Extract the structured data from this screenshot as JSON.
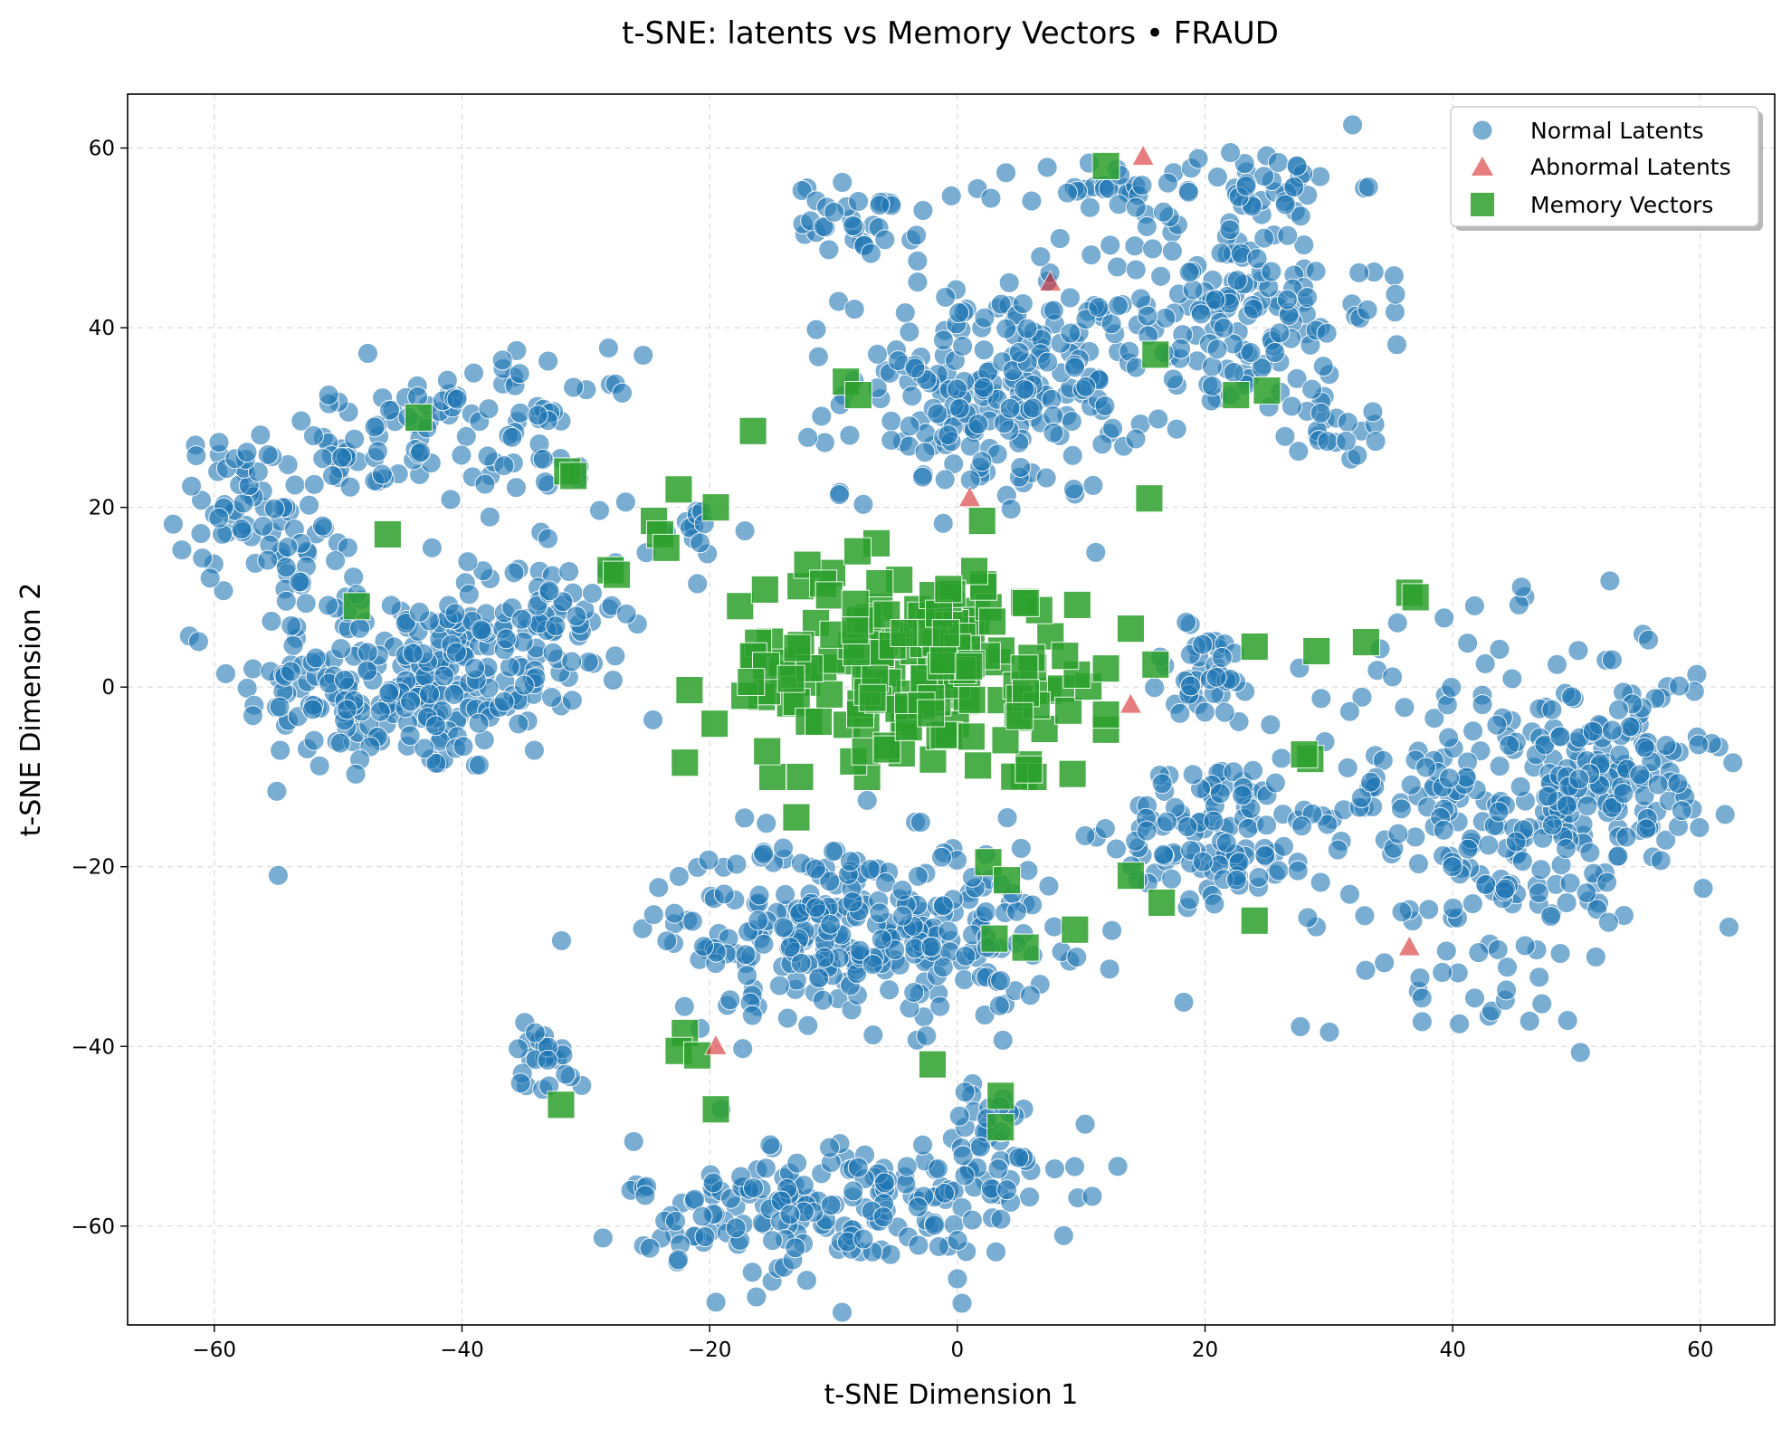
{
  "chart_data": {
    "type": "scatter",
    "title": "t-SNE: latents vs Memory Vectors • FRAUD",
    "xlabel": "t-SNE Dimension 1",
    "ylabel": "t-SNE Dimension 2",
    "xlim": [
      -67,
      66
    ],
    "ylim": [
      -71,
      66
    ],
    "xticks": [
      -60,
      -40,
      -20,
      0,
      20,
      40,
      60
    ],
    "yticks": [
      -60,
      -40,
      -20,
      0,
      20,
      40,
      60
    ],
    "tick_labels": {
      "x": [
        "−60",
        "−40",
        "−20",
        "0",
        "20",
        "40",
        "60"
      ],
      "y": [
        "−60",
        "−40",
        "−20",
        "0",
        "20",
        "40",
        "60"
      ]
    },
    "grid": true,
    "legend_position": "top-right",
    "colors": {
      "normal": "#1f77b4",
      "abnormal": "#d62728",
      "memory": "#2ca02c"
    },
    "series": [
      {
        "name": "Normal Latents",
        "marker": "circle",
        "clusters": [
          {
            "cx": -44,
            "cy": 0,
            "sx": 7,
            "sy": 5,
            "n": 240
          },
          {
            "cx": -33,
            "cy": 8,
            "sx": 3,
            "sy": 5,
            "n": 60
          },
          {
            "cx": -57,
            "cy": 20,
            "sx": 3,
            "sy": 4,
            "n": 60
          },
          {
            "cx": -47,
            "cy": 27,
            "sx": 5,
            "sy": 4,
            "n": 70
          },
          {
            "cx": -34,
            "cy": 29,
            "sx": 4,
            "sy": 4,
            "n": 50
          },
          {
            "cx": -51,
            "cy": 10,
            "sx": 3,
            "sy": 4,
            "n": 25
          },
          {
            "cx": -21,
            "cy": 17,
            "sx": 2,
            "sy": 2,
            "n": 15
          },
          {
            "cx": -8,
            "cy": 52,
            "sx": 2.5,
            "sy": 2,
            "n": 35
          },
          {
            "cx": 3,
            "cy": 33,
            "sx": 6,
            "sy": 6,
            "n": 220
          },
          {
            "cx": 22,
            "cy": 42,
            "sx": 6,
            "sy": 6,
            "n": 160
          },
          {
            "cx": 24,
            "cy": 56,
            "sx": 4,
            "sy": 2,
            "n": 40
          },
          {
            "cx": 11,
            "cy": 55,
            "sx": 3,
            "sy": 2,
            "n": 25
          },
          {
            "cx": 31,
            "cy": 29,
            "sx": 2,
            "sy": 2,
            "n": 20
          },
          {
            "cx": 20,
            "cy": 1,
            "sx": 2.5,
            "sy": 3,
            "n": 40
          },
          {
            "cx": 21,
            "cy": -16,
            "sx": 4,
            "sy": 4,
            "n": 110
          },
          {
            "cx": 44,
            "cy": -14,
            "sx": 8,
            "sy": 10,
            "n": 290
          },
          {
            "cx": 54,
            "cy": -8,
            "sx": 3,
            "sy": 5,
            "n": 80
          },
          {
            "cx": -8,
            "cy": -27,
            "sx": 8,
            "sy": 5,
            "n": 300
          },
          {
            "cx": -10,
            "cy": -58,
            "sx": 8,
            "sy": 4,
            "n": 190
          },
          {
            "cx": -33,
            "cy": -41,
            "sx": 1.5,
            "sy": 2,
            "n": 25
          },
          {
            "cx": 2,
            "cy": -51,
            "sx": 3,
            "sy": 4,
            "n": 40
          }
        ]
      },
      {
        "name": "Abnormal Latents",
        "marker": "triangle",
        "points": [
          [
            15,
            59
          ],
          [
            7.5,
            45
          ],
          [
            1,
            21
          ],
          [
            14,
            -2
          ],
          [
            36.5,
            -29
          ],
          [
            -19.5,
            -40
          ]
        ]
      },
      {
        "name": "Memory Vectors",
        "marker": "square",
        "points": [
          [
            12,
            58
          ],
          [
            16,
            37
          ],
          [
            15.5,
            21
          ],
          [
            -9,
            34
          ],
          [
            -8,
            32.5
          ],
          [
            22.5,
            32.5
          ],
          [
            25,
            33
          ],
          [
            -16.5,
            28.5
          ],
          [
            -43.5,
            30
          ],
          [
            -31.5,
            24
          ],
          [
            -31,
            23.5
          ],
          [
            -46,
            17
          ],
          [
            -48.5,
            9
          ],
          [
            -28,
            13
          ],
          [
            -27.5,
            12.5
          ],
          [
            -22.5,
            22
          ],
          [
            -19.5,
            20
          ],
          [
            -24.5,
            18.5
          ],
          [
            -24,
            17
          ],
          [
            -23.5,
            15.5
          ],
          [
            2,
            18.5
          ],
          [
            14,
            6.5
          ],
          [
            16,
            2.5
          ],
          [
            24,
            4.5
          ],
          [
            29,
            4
          ],
          [
            33,
            5
          ],
          [
            36.5,
            10.5
          ],
          [
            37,
            10
          ],
          [
            28.5,
            -8
          ],
          [
            28,
            -7.5
          ],
          [
            14,
            -21
          ],
          [
            16.5,
            -24
          ],
          [
            24,
            -26
          ],
          [
            5.5,
            -29
          ],
          [
            9.5,
            -27
          ],
          [
            3,
            -28
          ],
          [
            2.5,
            -19.5
          ],
          [
            4,
            -21.5
          ],
          [
            -13,
            -14.5
          ],
          [
            -22,
            -38.5
          ],
          [
            -22.5,
            -40.5
          ],
          [
            -21,
            -41
          ],
          [
            -19.5,
            -47
          ],
          [
            -32,
            -46.5
          ],
          [
            -2,
            -42
          ],
          [
            3.5,
            -45.5
          ],
          [
            3.5,
            -49
          ]
        ],
        "dense_region": {
          "cx": -3,
          "cy": 2,
          "sx": 8,
          "sy": 6,
          "n": 180,
          "x_range": [
            -22,
            12
          ],
          "y_range": [
            -10,
            16
          ]
        }
      }
    ]
  }
}
